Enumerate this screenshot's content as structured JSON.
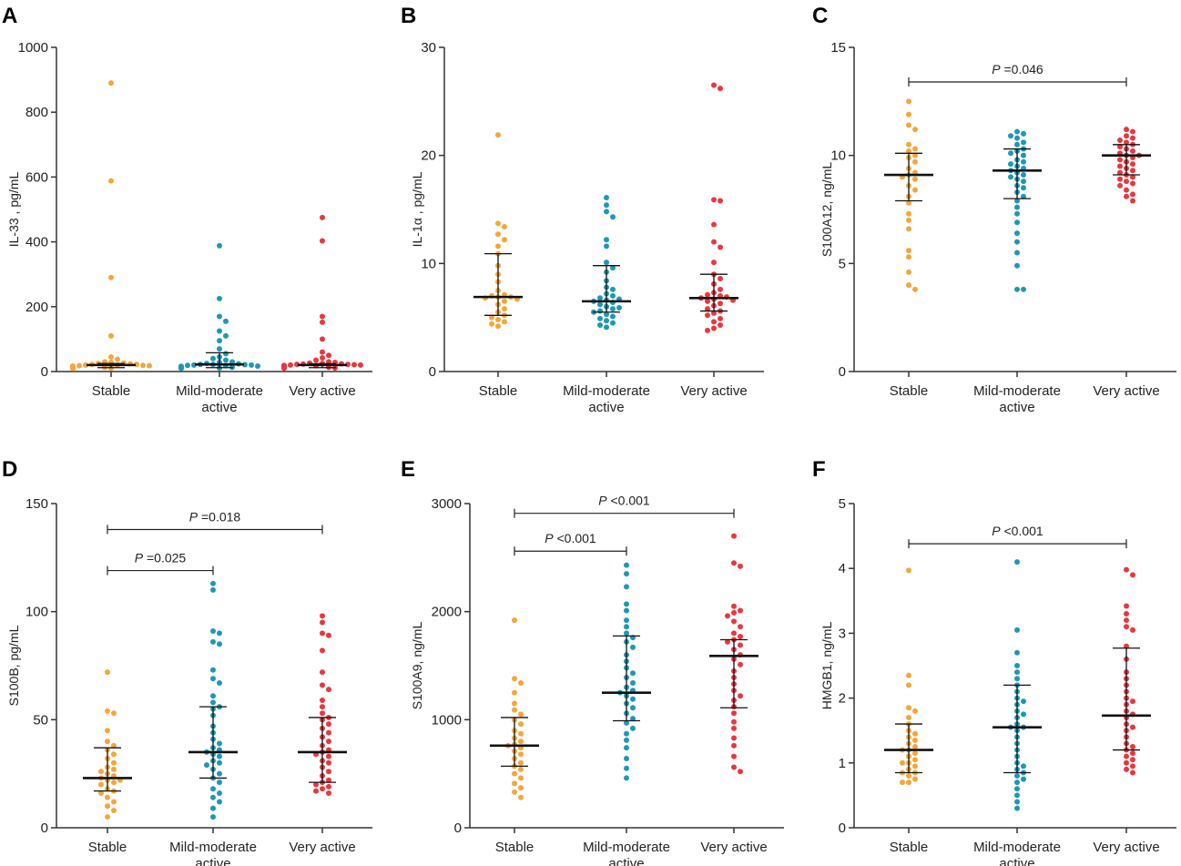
{
  "figure": {
    "colors": {
      "Stable": "#f5a53a",
      "Mild-moderate active": "#1f97b4",
      "Very active": "#e8373f"
    }
  },
  "chart_data": [
    {
      "panel": "A",
      "type": "scatter",
      "ylabel": "IL-33 , pg/mL",
      "ylim": [
        0,
        1000
      ],
      "yticks": [
        0,
        200,
        400,
        600,
        800,
        1000
      ],
      "categories": [
        "Stable",
        [
          "Mild-moderate",
          "active"
        ],
        "Very active"
      ],
      "summary": [
        {
          "median": 20,
          "q1": 12,
          "q3": 25
        },
        {
          "median": 22,
          "q1": 12,
          "q3": 58
        },
        {
          "median": 20,
          "q1": 12,
          "q3": 24
        }
      ],
      "series": [
        {
          "name": "Stable",
          "values": [
            890,
            588,
            290,
            110,
            45,
            38,
            30,
            28,
            26,
            25,
            24,
            22,
            22,
            20,
            20,
            19,
            18,
            18,
            17,
            16,
            15,
            15,
            14,
            14,
            13,
            12,
            12,
            11,
            10,
            10
          ]
        },
        {
          "name": "Mild-moderate active",
          "values": [
            388,
            225,
            170,
            155,
            125,
            110,
            95,
            70,
            55,
            45,
            40,
            35,
            30,
            28,
            25,
            24,
            22,
            22,
            21,
            20,
            20,
            19,
            18,
            17,
            16,
            15,
            15,
            14,
            13,
            12,
            12,
            11,
            10,
            10
          ]
        },
        {
          "name": "Very active",
          "values": [
            475,
            403,
            170,
            152,
            100,
            60,
            50,
            42,
            35,
            30,
            28,
            26,
            25,
            24,
            23,
            22,
            22,
            21,
            20,
            20,
            19,
            18,
            18,
            17,
            16,
            15,
            15,
            14,
            13,
            12,
            12,
            11,
            10
          ]
        }
      ],
      "significance": []
    },
    {
      "panel": "B",
      "type": "scatter",
      "ylabel": "IL-1α , pg/mL",
      "ylim": [
        0,
        30
      ],
      "yticks": [
        0,
        10,
        20,
        30
      ],
      "categories": [
        "Stable",
        [
          "Mild-moderate",
          "active"
        ],
        "Very active"
      ],
      "summary": [
        {
          "median": 6.9,
          "q1": 5.2,
          "q3": 10.9
        },
        {
          "median": 6.5,
          "q1": 5.5,
          "q3": 9.8
        },
        {
          "median": 6.8,
          "q1": 5.6,
          "q3": 9.0
        }
      ],
      "series": [
        {
          "name": "Stable",
          "values": [
            21.9,
            13.7,
            13.4,
            12.7,
            12.2,
            11.6,
            10.9,
            9.8,
            9.0,
            8.3,
            7.5,
            7.1,
            7.0,
            6.9,
            6.9,
            6.8,
            6.7,
            6.5,
            6.2,
            5.8,
            5.5,
            5.2,
            5.0,
            4.8,
            4.6,
            4.4,
            4.2
          ]
        },
        {
          "name": "Mild-moderate active",
          "values": [
            16.1,
            15.4,
            14.8,
            14.3,
            12.2,
            11.6,
            10.1,
            9.6,
            9.2,
            8.4,
            7.8,
            7.6,
            7.2,
            7.0,
            6.8,
            6.7,
            6.6,
            6.5,
            6.4,
            6.2,
            6.0,
            5.9,
            5.8,
            5.6,
            5.5,
            5.3,
            5.1,
            4.9,
            4.7,
            4.5,
            4.3,
            4.1
          ]
        },
        {
          "name": "Very active",
          "values": [
            26.5,
            26.2,
            15.9,
            15.8,
            13.6,
            12.0,
            11.5,
            10.1,
            9.0,
            8.6,
            8.1,
            7.6,
            7.3,
            7.1,
            7.0,
            6.9,
            6.8,
            6.7,
            6.6,
            6.5,
            6.3,
            6.1,
            5.8,
            5.6,
            5.4,
            5.2,
            4.9,
            4.6,
            4.3,
            4.0,
            3.8
          ]
        }
      ],
      "significance": []
    },
    {
      "panel": "C",
      "type": "scatter",
      "ylabel": "S100A12, ng/mL",
      "ylim": [
        0,
        15
      ],
      "yticks": [
        0,
        5,
        10,
        15
      ],
      "categories": [
        "Stable",
        [
          "Mild-moderate",
          "active"
        ],
        "Very active"
      ],
      "summary": [
        {
          "median": 9.1,
          "q1": 7.9,
          "q3": 10.1
        },
        {
          "median": 9.3,
          "q1": 8.0,
          "q3": 10.3
        },
        {
          "median": 10.0,
          "q1": 9.1,
          "q3": 10.5
        }
      ],
      "series": [
        {
          "name": "Stable",
          "values": [
            12.5,
            11.9,
            11.4,
            11.2,
            10.5,
            10.3,
            10.2,
            10.0,
            9.9,
            9.7,
            9.4,
            9.2,
            9.1,
            9.0,
            8.9,
            8.6,
            8.4,
            8.1,
            7.8,
            7.3,
            7.0,
            6.6,
            5.6,
            5.3,
            4.6,
            4.0,
            3.8
          ]
        },
        {
          "name": "Mild-moderate active",
          "values": [
            11.1,
            11.0,
            10.9,
            10.8,
            10.6,
            10.5,
            10.3,
            10.2,
            10.1,
            10.0,
            9.8,
            9.7,
            9.6,
            9.5,
            9.4,
            9.3,
            9.2,
            9.1,
            9.0,
            8.9,
            8.8,
            8.6,
            8.5,
            8.3,
            8.1,
            7.9,
            7.6,
            7.3,
            6.9,
            6.4,
            6.0,
            5.5,
            4.9,
            3.8,
            3.8
          ]
        },
        {
          "name": "Very active",
          "values": [
            11.2,
            11.1,
            10.9,
            10.8,
            10.7,
            10.6,
            10.5,
            10.4,
            10.3,
            10.2,
            10.1,
            10.0,
            10.0,
            9.9,
            9.8,
            9.7,
            9.6,
            9.5,
            9.4,
            9.3,
            9.2,
            9.1,
            9.0,
            8.9,
            8.8,
            8.7,
            8.6,
            8.4,
            8.2,
            8.1,
            7.9
          ]
        }
      ],
      "significance": [
        {
          "from": 0,
          "to": 2,
          "label_p": "P",
          "label_val": " =0.046",
          "y": 13.4
        }
      ]
    },
    {
      "panel": "D",
      "type": "scatter",
      "ylabel": "S100B, pg/mL",
      "ylim": [
        0,
        150
      ],
      "yticks": [
        0,
        50,
        100,
        150
      ],
      "categories": [
        "Stable",
        [
          "Mild-moderate",
          "active"
        ],
        "Very active"
      ],
      "summary": [
        {
          "median": 23,
          "q1": 17,
          "q3": 37
        },
        {
          "median": 35,
          "q1": 23,
          "q3": 56
        },
        {
          "median": 35,
          "q1": 21,
          "q3": 51
        }
      ],
      "series": [
        {
          "name": "Stable",
          "values": [
            72,
            54,
            53,
            45,
            40,
            38,
            36,
            34,
            32,
            30,
            28,
            27,
            26,
            25,
            24,
            23,
            22,
            22,
            21,
            20,
            18,
            17,
            16,
            14,
            12,
            10,
            8,
            5
          ]
        },
        {
          "name": "Mild-moderate active",
          "values": [
            113,
            110,
            91,
            90,
            86,
            85,
            73,
            69,
            67,
            61,
            58,
            56,
            55,
            52,
            47,
            44,
            41,
            39,
            37,
            36,
            35,
            34,
            33,
            31,
            30,
            29,
            27,
            25,
            23,
            21,
            18,
            16,
            14,
            12,
            9,
            5
          ]
        },
        {
          "name": "Very active",
          "values": [
            98,
            95,
            90,
            89,
            82,
            72,
            66,
            64,
            59,
            56,
            53,
            51,
            50,
            48,
            46,
            44,
            42,
            40,
            38,
            36,
            35,
            34,
            33,
            31,
            30,
            28,
            26,
            24,
            22,
            21,
            20,
            19,
            18,
            17,
            16
          ]
        }
      ],
      "significance": [
        {
          "from": 0,
          "to": 1,
          "label_p": "P",
          "label_val": " =0.025",
          "y": 119
        },
        {
          "from": 0,
          "to": 2,
          "label_p": "P",
          "label_val": " =0.018",
          "y": 138
        }
      ]
    },
    {
      "panel": "E",
      "type": "scatter",
      "ylabel": "S100A9, ng/mL",
      "ylim": [
        0,
        3000
      ],
      "yticks": [
        0,
        1000,
        2000,
        3000
      ],
      "categories": [
        "Stable",
        [
          "Mild-moderate",
          "active"
        ],
        "Very active"
      ],
      "summary": [
        {
          "median": 760,
          "q1": 570,
          "q3": 1020
        },
        {
          "median": 1250,
          "q1": 990,
          "q3": 1775
        },
        {
          "median": 1590,
          "q1": 1110,
          "q3": 1740
        }
      ],
      "series": [
        {
          "name": "Stable",
          "values": [
            1920,
            1380,
            1340,
            1250,
            1150,
            1090,
            1050,
            1000,
            960,
            900,
            870,
            830,
            800,
            770,
            760,
            740,
            710,
            680,
            640,
            600,
            570,
            540,
            500,
            460,
            410,
            370,
            330,
            280
          ]
        },
        {
          "name": "Mild-moderate active",
          "values": [
            2430,
            2350,
            2230,
            2070,
            2010,
            1920,
            1860,
            1800,
            1760,
            1720,
            1670,
            1600,
            1540,
            1480,
            1430,
            1390,
            1340,
            1300,
            1270,
            1250,
            1220,
            1190,
            1150,
            1110,
            1060,
            1010,
            970,
            920,
            870,
            810,
            740,
            640,
            550,
            460
          ]
        },
        {
          "name": "Very active",
          "values": [
            2700,
            2450,
            2420,
            2050,
            2010,
            1990,
            1960,
            1910,
            1860,
            1800,
            1770,
            1740,
            1720,
            1690,
            1650,
            1600,
            1560,
            1510,
            1450,
            1390,
            1330,
            1270,
            1220,
            1180,
            1120,
            1060,
            980,
            920,
            830,
            760,
            660,
            560,
            520
          ]
        }
      ],
      "significance": [
        {
          "from": 0,
          "to": 1,
          "label_p": "P",
          "label_val": " <0.001",
          "y": 2560
        },
        {
          "from": 0,
          "to": 2,
          "label_p": "P",
          "label_val": " <0.001",
          "y": 2910
        }
      ]
    },
    {
      "panel": "F",
      "type": "scatter",
      "ylabel": "HMGB1, ng/mL",
      "ylim": [
        0,
        5
      ],
      "yticks": [
        0,
        1,
        2,
        3,
        4,
        5
      ],
      "categories": [
        "Stable",
        [
          "Mild-moderate",
          "active"
        ],
        "Very active"
      ],
      "summary": [
        {
          "median": 1.2,
          "q1": 0.85,
          "q3": 1.6
        },
        {
          "median": 1.55,
          "q1": 0.85,
          "q3": 2.2
        },
        {
          "median": 1.73,
          "q1": 1.2,
          "q3": 2.77
        }
      ],
      "series": [
        {
          "name": "Stable",
          "values": [
            3.97,
            2.35,
            2.2,
            1.85,
            1.8,
            1.7,
            1.6,
            1.5,
            1.45,
            1.4,
            1.35,
            1.3,
            1.25,
            1.2,
            1.2,
            1.15,
            1.1,
            1.05,
            1.0,
            1.0,
            0.95,
            0.9,
            0.85,
            0.85,
            0.8,
            0.75,
            0.7,
            0.7
          ]
        },
        {
          "name": "Mild-moderate active",
          "values": [
            4.1,
            3.05,
            2.7,
            2.5,
            2.4,
            2.3,
            2.2,
            2.1,
            2.0,
            1.95,
            1.9,
            1.8,
            1.75,
            1.7,
            1.6,
            1.55,
            1.55,
            1.5,
            1.4,
            1.3,
            1.2,
            1.1,
            1.0,
            0.95,
            0.9,
            0.85,
            0.8,
            0.75,
            0.7,
            0.6,
            0.5,
            0.4,
            0.3
          ]
        },
        {
          "name": "Very active",
          "values": [
            3.98,
            3.9,
            3.42,
            3.3,
            3.2,
            3.1,
            3.05,
            2.8,
            2.6,
            2.4,
            2.3,
            2.2,
            2.1,
            2.0,
            1.95,
            1.9,
            1.8,
            1.75,
            1.7,
            1.6,
            1.55,
            1.5,
            1.4,
            1.3,
            1.25,
            1.2,
            1.15,
            1.1,
            1.05,
            1.0,
            0.95,
            0.9,
            0.85
          ]
        }
      ],
      "significance": [
        {
          "from": 0,
          "to": 2,
          "label_p": "P",
          "label_val": " <0.001",
          "y": 4.38
        }
      ]
    }
  ]
}
